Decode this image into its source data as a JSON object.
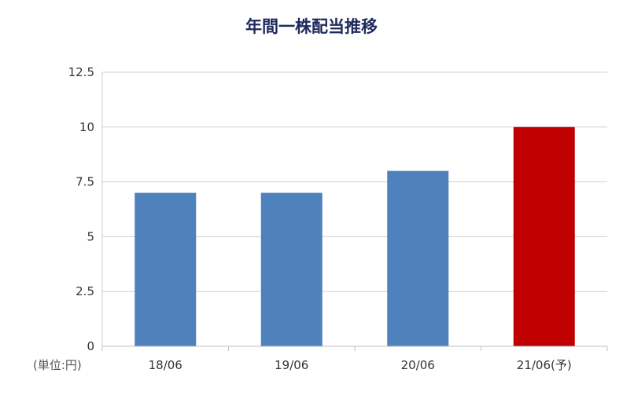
{
  "chart_data": {
    "type": "bar",
    "title": "年間一株配当推移",
    "unit_label": "(単位:円)",
    "categories": [
      "18/06",
      "19/06",
      "20/06",
      "21/06(予)"
    ],
    "values": [
      7,
      7,
      8,
      10
    ],
    "bar_colors": [
      "#4f81bd",
      "#4f81bd",
      "#4f81bd",
      "#c00000"
    ],
    "ylim": [
      0,
      12.5
    ],
    "yticks": [
      0,
      2.5,
      5,
      7.5,
      10,
      12.5
    ],
    "ytick_labels": [
      "0",
      "2.5",
      "5",
      "7.5",
      "10",
      "12.5"
    ],
    "grid": true,
    "legend": "none"
  }
}
